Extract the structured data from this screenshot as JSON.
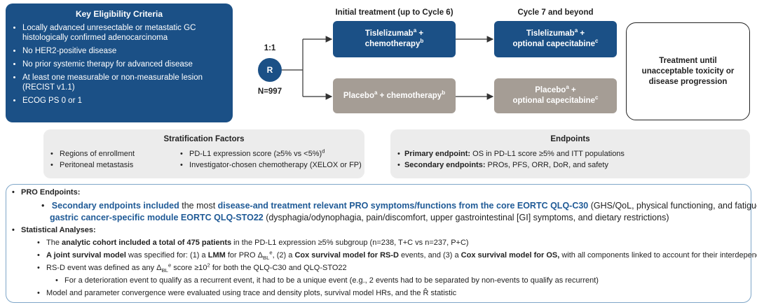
{
  "eligibility": {
    "title": "Key Eligibility Criteria",
    "items": [
      "Locally advanced unresectable or metastatic GC histologically confirmed adenocarcinoma",
      "No HER2-positive disease",
      "No prior systemic therapy for advanced disease",
      "At least one measurable or non-measurable lesion (RECIST v1.1)",
      "ECOG PS 0 or 1"
    ]
  },
  "randomization": {
    "ratio": "1:1",
    "symbol": "R",
    "n": "N=997"
  },
  "phases": [
    "Initial treatment (up to Cycle 6)",
    "Cycle 7 and beyond"
  ],
  "arms": {
    "tislelizumab_initial": [
      "Tislelizumab",
      "a",
      " +",
      "chemotherapy",
      "b"
    ],
    "tislelizumab_later": [
      "Tislelizumab",
      "a",
      " +",
      "optional capecitabine",
      "c"
    ],
    "placebo_initial": [
      "Placebo",
      "a",
      " + chemotherapy",
      "b"
    ],
    "placebo_later": [
      "Placebo",
      "a",
      " +",
      "optional capecitabine",
      "c"
    ]
  },
  "outcome": "Treatment until unacceptable toxicity or disease progression",
  "stratification": {
    "title": "Stratification Factors",
    "items": [
      "Regions of enrollment",
      "Peritoneal metastasis",
      "PD-L1 expression score (≥5% vs <5%)",
      "Investigator-chosen chemotherapy (XELOX or FP)"
    ],
    "pdl1_marker": "d"
  },
  "endpoints": {
    "title": "Endpoints",
    "primary": [
      "Primary endpoint:",
      " OS in PD-L1 score ≥5% and ITT populations"
    ],
    "secondary": [
      "Secondary endpoints:",
      " PROs, PFS, ORR, DoR, and safety"
    ]
  },
  "details": {
    "pro_heading": "PRO Endpoints:",
    "pro_text": [
      "Secondary endpoints included",
      " the most ",
      "disease-and treatment relevant PRO symptoms/functions from the core EORTC QLQ-C30",
      " (GHS/QoL, physical functioning, and fatigue) and ",
      "gastric cancer-specific module EORTC QLQ-STO22",
      " (dysphagia/odynophagia, pain/discomfort, upper gastrointestinal [GI] symptoms, and dietary restrictions)"
    ],
    "stats_heading": "Statistical Analyses:",
    "stats": [
      [
        "The ",
        "analytic cohort included a total of 475 patients",
        " in the PD-L1 expression ≥5% subgroup (n=238, T+C vs n=237, P+C)"
      ],
      [
        "A joint survival model",
        " was specified for: (1) a ",
        "LMM",
        " for PRO ",
        "Δ",
        "BL",
        "e",
        ", (2) a ",
        "Cox survival model for RS-D",
        " events, and (3) a ",
        "Cox survival model for OS,",
        " with all components linked to account for their interdependence"
      ],
      [
        "RS-D event was defined as any ",
        "Δ",
        "BL",
        "e",
        " score ≥10",
        "2",
        " for both the QLQ-C30 and QLQ-STO22"
      ],
      [
        "For a deterioration event to qualify as a recurrent event, it had to be a unique event (e.g., 2 events had to be separated by non-events to qualify as recurrent)"
      ],
      [
        "Model and parameter convergence were evaluated using trace and density plots, survival model HRs, and the ",
        "R̂",
        " statistic"
      ]
    ]
  }
}
